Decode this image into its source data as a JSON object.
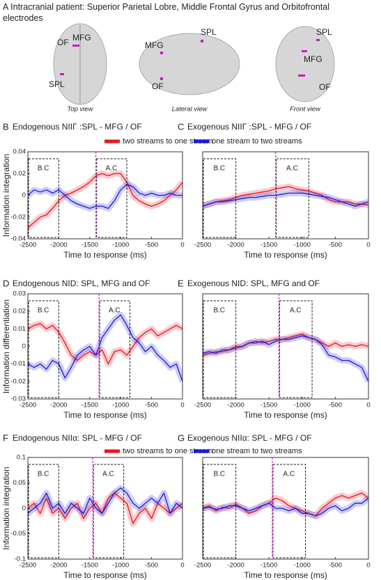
{
  "panel_a": {
    "letter": "A",
    "title": "Intracranial patient: Superior Parietal Lobre, Middle Frontal Gyrus and Orbitofrontal electrodes",
    "views": [
      {
        "caption": "Top view",
        "labels": [
          "MFG",
          "OF",
          "SPL"
        ]
      },
      {
        "caption": "Lateral view",
        "labels": [
          "MFG",
          "SPL",
          "OF"
        ]
      },
      {
        "caption": "Front view",
        "labels": [
          "SPL",
          "MFG",
          "OF"
        ]
      }
    ]
  },
  "chart_data": [
    {
      "type": "line",
      "panel": "B",
      "title": "Endogenous NIIΓ :SPL - MFG / OF",
      "xlabel": "Time to response (ms)",
      "ylabel": "Information integration",
      "x": [
        -2500,
        -2400,
        -2300,
        -2200,
        -2100,
        -2000,
        -1900,
        -1800,
        -1700,
        -1600,
        -1500,
        -1400,
        -1300,
        -1200,
        -1100,
        -1000,
        -900,
        -800,
        -700,
        -600,
        -500,
        -400,
        -300,
        -200,
        -100,
        0
      ],
      "series": [
        {
          "name": "two streams to one stream",
          "color": "#e8141c",
          "values": [
            -0.03,
            -0.025,
            -0.02,
            -0.018,
            -0.012,
            -0.005,
            0.0,
            0.002,
            0.005,
            0.008,
            0.012,
            0.018,
            0.02,
            0.018,
            0.02,
            0.02,
            0.012,
            0.0,
            -0.005,
            -0.008,
            -0.01,
            -0.008,
            -0.005,
            0.0,
            0.005,
            0.012
          ]
        },
        {
          "name": "one stream to two streams",
          "color": "#1a1ae0",
          "values": [
            0.0,
            0.005,
            0.003,
            0.005,
            0.002,
            0.005,
            0.0,
            -0.005,
            -0.008,
            -0.01,
            -0.012,
            -0.01,
            -0.01,
            -0.012,
            -0.005,
            0.005,
            0.01,
            0.008,
            0.002,
            0.0,
            0.002,
            0.0,
            0.0,
            0.002,
            0.0,
            0.0
          ]
        }
      ],
      "xlim": [
        -2500,
        0
      ],
      "xticks": [
        -2500,
        -2000,
        -1500,
        -1000,
        -500,
        0
      ],
      "ylim": [
        -0.04,
        0.04
      ],
      "yticks": [
        -0.04,
        -0.02,
        0,
        0.02,
        0.04
      ],
      "vline": -1400,
      "annotations": [
        {
          "label": "B.C",
          "x": [
            -2500,
            -2000
          ]
        },
        {
          "label": "A.C",
          "x": [
            -1400,
            -900
          ]
        }
      ]
    },
    {
      "type": "line",
      "panel": "C",
      "title": "Exogenous NIIΓ :SPL - MFG / OF",
      "xlabel": "Time to response (ms)",
      "x": [
        -2500,
        -2400,
        -2300,
        -2200,
        -2100,
        -2000,
        -1900,
        -1800,
        -1700,
        -1600,
        -1500,
        -1400,
        -1300,
        -1200,
        -1100,
        -1000,
        -900,
        -800,
        -700,
        -600,
        -500,
        -400,
        -300,
        -200,
        -100,
        0
      ],
      "series": [
        {
          "color": "#e8141c",
          "values": [
            -0.01,
            -0.008,
            -0.006,
            -0.005,
            -0.004,
            -0.002,
            0.0,
            0.001,
            0.002,
            0.003,
            0.004,
            0.006,
            0.007,
            0.008,
            0.006,
            0.005,
            0.004,
            0.002,
            0.0,
            -0.004,
            -0.006,
            -0.006,
            -0.006,
            -0.008,
            -0.008,
            -0.009
          ]
        },
        {
          "color": "#1a1ae0",
          "values": [
            -0.01,
            -0.008,
            -0.006,
            -0.006,
            -0.005,
            -0.004,
            -0.003,
            -0.002,
            -0.002,
            -0.001,
            0.0,
            0.0,
            0.001,
            0.002,
            0.002,
            0.002,
            0.001,
            0.0,
            -0.001,
            -0.002,
            -0.004,
            -0.006,
            -0.008,
            -0.01,
            -0.008,
            -0.006
          ]
        }
      ],
      "xlim": [
        -2500,
        0
      ],
      "xticks": [
        -2500,
        -2000,
        -1500,
        -1000,
        -500,
        0
      ],
      "ylim": [
        -0.04,
        0.04
      ],
      "vline": -1400,
      "annotations": [
        {
          "label": "B.C",
          "x": [
            -2500,
            -2000
          ]
        },
        {
          "label": "A.C",
          "x": [
            -1400,
            -900
          ]
        }
      ]
    },
    {
      "type": "line",
      "panel": "D",
      "title": "Endogenous NID: SPL, MFG and OF",
      "xlabel": "Time to response (ms)",
      "ylabel": "Information differentiation",
      "x": [
        -2500,
        -2400,
        -2300,
        -2200,
        -2100,
        -2000,
        -1900,
        -1800,
        -1700,
        -1600,
        -1500,
        -1400,
        -1300,
        -1200,
        -1100,
        -1000,
        -900,
        -800,
        -700,
        -600,
        -500,
        -400,
        -300,
        -200,
        -100,
        0
      ],
      "series": [
        {
          "color": "#e8141c",
          "values": [
            0.01,
            0.012,
            0.013,
            0.01,
            0.012,
            0.008,
            0.002,
            -0.005,
            -0.008,
            -0.005,
            -0.003,
            -0.005,
            -0.002,
            -0.01,
            -0.003,
            -0.002,
            -0.005,
            0.0,
            0.005,
            0.008,
            0.01,
            0.006,
            0.008,
            0.01,
            0.012,
            0.01
          ]
        },
        {
          "color": "#1a1ae0",
          "values": [
            -0.01,
            -0.012,
            -0.01,
            -0.013,
            -0.008,
            -0.01,
            -0.018,
            -0.012,
            -0.005,
            -0.002,
            0.0,
            -0.005,
            0.005,
            0.01,
            0.015,
            0.018,
            0.012,
            0.005,
            0.002,
            -0.003,
            0.0,
            -0.005,
            -0.008,
            -0.012,
            -0.01,
            -0.02
          ]
        }
      ],
      "xlim": [
        -2500,
        0
      ],
      "xticks": [
        -2500,
        -2000,
        -1500,
        -1000,
        -500,
        0
      ],
      "ylim": [
        -0.03,
        0.03
      ],
      "yticks": [
        -0.03,
        -0.02,
        -0.01,
        0,
        0.01,
        0.02,
        0.03
      ],
      "vline": -1350,
      "annotations": [
        {
          "label": "B.C",
          "x": [
            -2500,
            -2000
          ]
        },
        {
          "label": "A.C",
          "x": [
            -1350,
            -850
          ]
        }
      ]
    },
    {
      "type": "line",
      "panel": "E",
      "title": "Exogenous NID: SPL, MFG and OF",
      "xlabel": "Time to response (ms)",
      "x": [
        -2500,
        -2400,
        -2300,
        -2200,
        -2100,
        -2000,
        -1900,
        -1800,
        -1700,
        -1600,
        -1500,
        -1400,
        -1300,
        -1200,
        -1100,
        -1000,
        -900,
        -800,
        -700,
        -600,
        -500,
        -400,
        -300,
        -200,
        -100,
        0
      ],
      "series": [
        {
          "color": "#e8141c",
          "values": [
            -0.005,
            -0.004,
            -0.003,
            -0.003,
            -0.002,
            0.0,
            0.0,
            0.002,
            0.003,
            0.002,
            0.003,
            0.004,
            0.004,
            0.005,
            0.006,
            0.007,
            0.005,
            0.004,
            0.002,
            0.0,
            0.002,
            0.0,
            0.001,
            0.0,
            0.001,
            0.0
          ]
        },
        {
          "color": "#1a1ae0",
          "values": [
            -0.004,
            -0.003,
            -0.004,
            -0.002,
            -0.002,
            -0.001,
            0.0,
            0.002,
            0.002,
            0.003,
            0.001,
            0.003,
            0.004,
            0.004,
            0.005,
            0.006,
            0.005,
            0.004,
            0.001,
            -0.005,
            -0.006,
            -0.008,
            -0.008,
            -0.01,
            -0.012,
            -0.02
          ]
        }
      ],
      "xlim": [
        -2500,
        0
      ],
      "xticks": [
        -2500,
        -2000,
        -1500,
        -1000,
        -500,
        0
      ],
      "ylim": [
        -0.03,
        0.03
      ],
      "vline": -1350,
      "annotations": [
        {
          "label": "B.C",
          "x": [
            -2500,
            -2000
          ]
        },
        {
          "label": "A.C",
          "x": [
            -1350,
            -850
          ]
        }
      ]
    },
    {
      "type": "line",
      "panel": "F",
      "title": "Endogenous NIIα: SPL - MFG / OF",
      "xlabel": "Time to response (ms)",
      "ylabel": "Information integration",
      "x": [
        -2500,
        -2400,
        -2300,
        -2200,
        -2100,
        -2000,
        -1900,
        -1800,
        -1700,
        -1600,
        -1500,
        -1400,
        -1300,
        -1200,
        -1100,
        -1000,
        -900,
        -800,
        -700,
        -600,
        -500,
        -400,
        -300,
        -200,
        -100,
        0
      ],
      "series": [
        {
          "name": "two streams to one stream",
          "color": "#e8141c",
          "values": [
            0.0,
            0.01,
            -0.01,
            0.02,
            -0.01,
            0.0,
            -0.02,
            0.0,
            0.01,
            -0.02,
            0.0,
            0.01,
            -0.01,
            0.02,
            0.03,
            0.02,
            0.01,
            -0.03,
            -0.01,
            0.0,
            -0.02,
            0.01,
            0.0,
            -0.01,
            0.0,
            0.01
          ]
        },
        {
          "name": "one stream to two streams",
          "color": "#1a1ae0",
          "values": [
            -0.01,
            0.0,
            0.01,
            0.03,
            0.0,
            0.01,
            -0.01,
            0.01,
            0.0,
            -0.01,
            0.02,
            0.0,
            -0.01,
            0.01,
            0.03,
            0.04,
            0.03,
            0.01,
            0.0,
            0.01,
            0.02,
            0.01,
            0.03,
            -0.01,
            0.01,
            0.0
          ]
        }
      ],
      "xlim": [
        -2500,
        0
      ],
      "xticks": [
        -2500,
        -2000,
        -1500,
        -1000,
        -500,
        0
      ],
      "ylim": [
        -0.1,
        0.1
      ],
      "yticks": [
        -0.1,
        -0.05,
        0,
        0.05,
        0.1
      ],
      "vline": -1450,
      "annotations": [
        {
          "label": "B.C",
          "x": [
            -2500,
            -2000
          ]
        },
        {
          "label": "A.C",
          "x": [
            -1450,
            -950
          ]
        }
      ]
    },
    {
      "type": "line",
      "panel": "G",
      "title": "Exogenous NIIα: SPL - MFG / OF",
      "xlabel": "Time to response (ms)",
      "x": [
        -2500,
        -2400,
        -2300,
        -2200,
        -2100,
        -2000,
        -1900,
        -1800,
        -1700,
        -1600,
        -1500,
        -1400,
        -1300,
        -1200,
        -1100,
        -1000,
        -900,
        -800,
        -700,
        -600,
        -500,
        -400,
        -300,
        -200,
        -100,
        0
      ],
      "series": [
        {
          "color": "#e8141c",
          "values": [
            0.0,
            0.005,
            -0.005,
            0.002,
            0.0,
            0.008,
            0.0,
            -0.01,
            -0.005,
            0.005,
            0.01,
            0.02,
            0.015,
            0.005,
            0.0,
            -0.005,
            -0.01,
            -0.015,
            0.0,
            0.01,
            0.02,
            0.025,
            0.02,
            0.025,
            0.03,
            0.02
          ]
        },
        {
          "color": "#1a1ae0",
          "values": [
            0.0,
            0.002,
            -0.002,
            0.0,
            0.005,
            0.005,
            0.0,
            -0.005,
            0.0,
            0.005,
            0.01,
            0.0,
            0.0,
            -0.005,
            0.0,
            -0.01,
            -0.01,
            -0.015,
            -0.01,
            0.0,
            0.005,
            -0.005,
            0.0,
            0.01,
            0.01,
            0.02
          ]
        }
      ],
      "xlim": [
        -2500,
        0
      ],
      "xticks": [
        -2500,
        -2000,
        -1500,
        -1000,
        -500,
        0
      ],
      "ylim": [
        -0.1,
        0.1
      ],
      "vline": -1450,
      "annotations": [
        {
          "label": "B.C",
          "x": [
            -2500,
            -2000
          ]
        },
        {
          "label": "A.C",
          "x": [
            -1450,
            -950
          ]
        }
      ]
    }
  ]
}
